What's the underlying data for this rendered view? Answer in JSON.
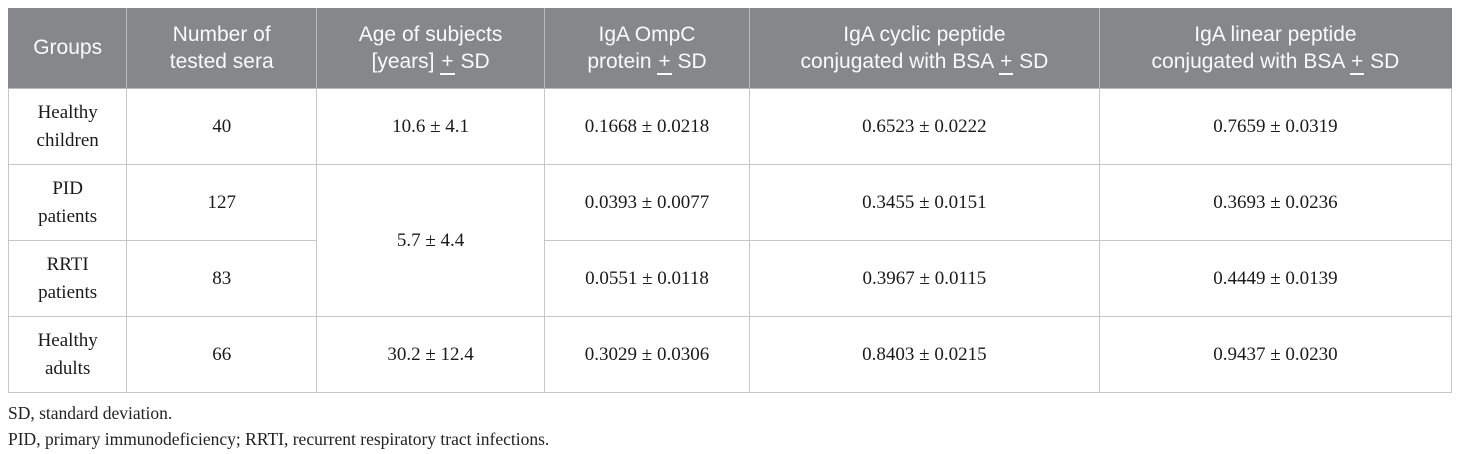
{
  "colors": {
    "header_bg": "#85878a",
    "header_text": "#fafafa",
    "border": "#c6c6c6",
    "body_text": "#1a1a1a",
    "footnote_text": "#222222"
  },
  "table": {
    "headers": [
      "Groups",
      "Number of\ntested sera",
      "Age of subjects\n[years] ± SD",
      "IgA OmpC\nprotein ± SD",
      "IgA cyclic peptide\nconjugated with BSA ± SD",
      "IgA linear peptide\nconjugated with BSA ± SD"
    ],
    "rows": [
      {
        "group": "Healthy\nchildren",
        "tested_sera": "40",
        "age": "10.6 ± 4.1",
        "iga_ompc": "0.1668 ± 0.0218",
        "iga_cyclic": "0.6523 ± 0.0222",
        "iga_linear": "0.7659 ± 0.0319"
      },
      {
        "group": "PID\npatients",
        "tested_sera": "127",
        "age": "5.7 ± 4.4",
        "iga_ompc": "0.0393 ± 0.0077",
        "iga_cyclic": "0.3455 ± 0.0151",
        "iga_linear": "0.3693 ± 0.0236"
      },
      {
        "group": "RRTI\npatients",
        "tested_sera": "83",
        "iga_ompc": "0.0551 ± 0.0118",
        "iga_cyclic": "0.3967 ± 0.0115",
        "iga_linear": "0.4449 ± 0.0139"
      },
      {
        "group": "Healthy\nadults",
        "tested_sera": "66",
        "age": "30.2 ± 12.4",
        "iga_ompc": "0.3029 ± 0.0306",
        "iga_cyclic": "0.8403 ± 0.0215",
        "iga_linear": "0.9437 ± 0.0230"
      }
    ],
    "footnotes": [
      "SD, standard deviation.",
      "PID, primary immunodeficiency; RRTI, recurrent respiratory tract infections."
    ]
  }
}
